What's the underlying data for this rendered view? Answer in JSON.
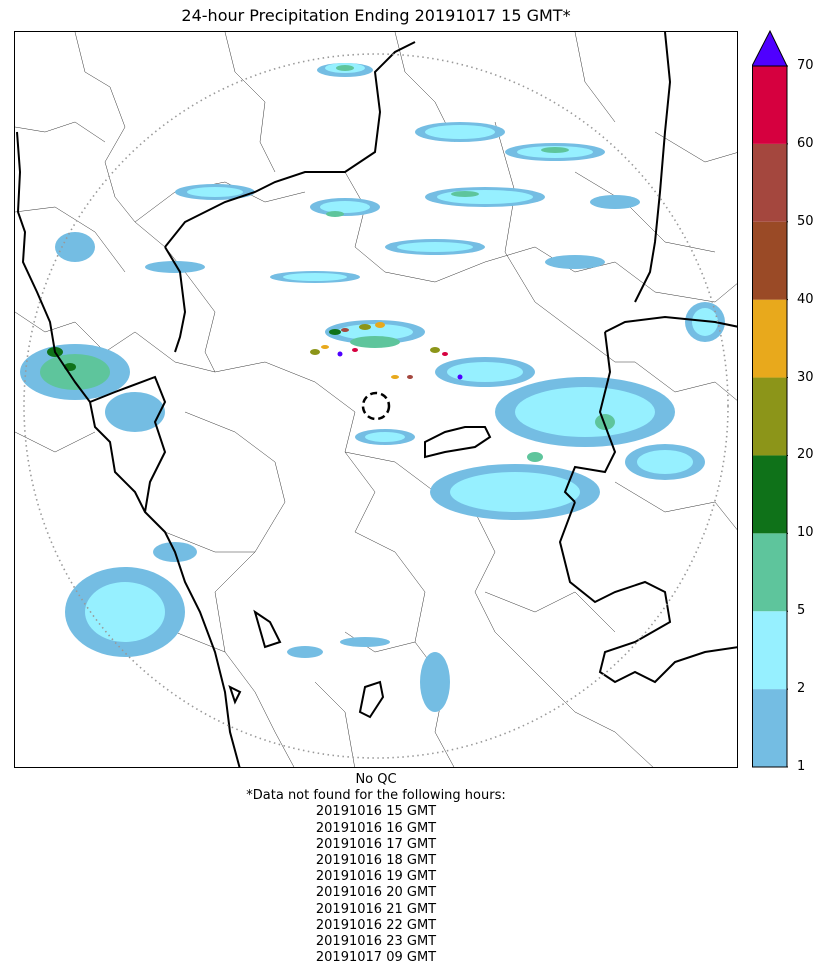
{
  "title": "24-hour Precipitation Ending 20191017 15 GMT*",
  "colorbar": {
    "ticks": [
      "1",
      "2",
      "5",
      "10",
      "20",
      "30",
      "40",
      "50",
      "60",
      "70"
    ],
    "levels": [
      1,
      2,
      5,
      10,
      20,
      30,
      40,
      50,
      60,
      70
    ],
    "colors": [
      "#74bde3",
      "#96f0ff",
      "#5ec59c",
      "#0f7219",
      "#8c9519",
      "#e8a91c",
      "#9a4a26",
      "#a4473e",
      "#d6003f"
    ],
    "extend_color": "#4f00ff"
  },
  "footer": {
    "qc": "No QC",
    "missing_heading": "*Data not found for the following hours:",
    "missing_hours": [
      "20191016 15 GMT",
      "20191016 16 GMT",
      "20191016 17 GMT",
      "20191016 18 GMT",
      "20191016 19 GMT",
      "20191016 20 GMT",
      "20191016 21 GMT",
      "20191016 22 GMT",
      "20191016 23 GMT",
      "20191017 09 GMT"
    ]
  },
  "map_colors": {
    "range_ring": "#999999",
    "border": "#000000"
  }
}
